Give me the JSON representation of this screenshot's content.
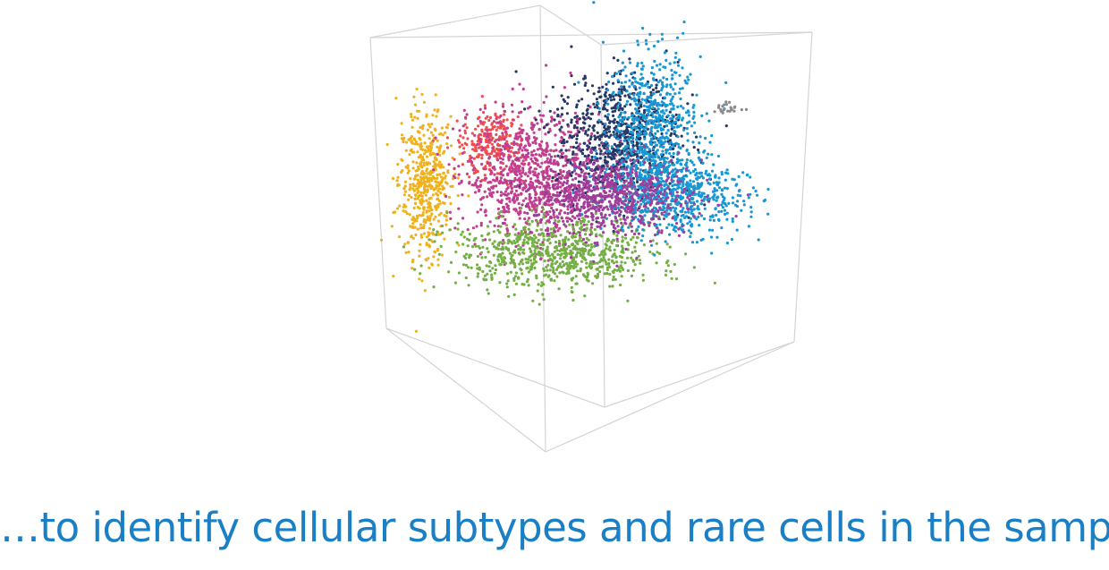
{
  "caption": "…to identify cellular subtypes and rare cells in the sample",
  "colors": {
    "caption": "#1a7fc4",
    "box": "#d4d4d4"
  },
  "chart_data": {
    "type": "scatter",
    "dimensions": 3,
    "title": "",
    "xlabel": "",
    "ylabel": "",
    "zlabel": "",
    "axes_visible": false,
    "grid": false,
    "legend": "none",
    "series": [
      {
        "color": "#f0b21c",
        "center": [
          -0.78,
          0.08,
          0.1
        ],
        "spread": [
          0.07,
          0.26,
          0.05
        ]
      },
      {
        "color": "#f04e4e",
        "center": [
          -0.42,
          0.34,
          0.0
        ],
        "spread": [
          0.08,
          0.12,
          0.05
        ]
      },
      {
        "color": "#c23f8f",
        "center": [
          -0.2,
          0.1,
          0.0
        ],
        "spread": [
          0.17,
          0.22,
          0.1
        ]
      },
      {
        "color": "#74af45",
        "center": [
          -0.1,
          -0.42,
          0.05
        ],
        "spread": [
          0.26,
          0.12,
          0.08
        ]
      },
      {
        "color": "#263867",
        "center": [
          0.25,
          0.38,
          -0.1
        ],
        "spread": [
          0.16,
          0.22,
          0.1
        ]
      },
      {
        "color": "#1797d4",
        "center": [
          0.42,
          0.42,
          -0.05
        ],
        "spread": [
          0.12,
          0.28,
          0.08
        ]
      },
      {
        "color": "#1797d4",
        "center": [
          0.52,
          -0.02,
          0.1
        ],
        "spread": [
          0.18,
          0.13,
          0.08
        ]
      },
      {
        "color": "#a03d9a",
        "center": [
          0.18,
          -0.02,
          0.1
        ],
        "spread": [
          0.2,
          0.14,
          0.08
        ]
      },
      {
        "color": "#8a8a8a",
        "center": [
          0.82,
          0.58,
          0.0
        ],
        "spread": [
          0.04,
          0.02,
          0.02
        ]
      }
    ]
  }
}
